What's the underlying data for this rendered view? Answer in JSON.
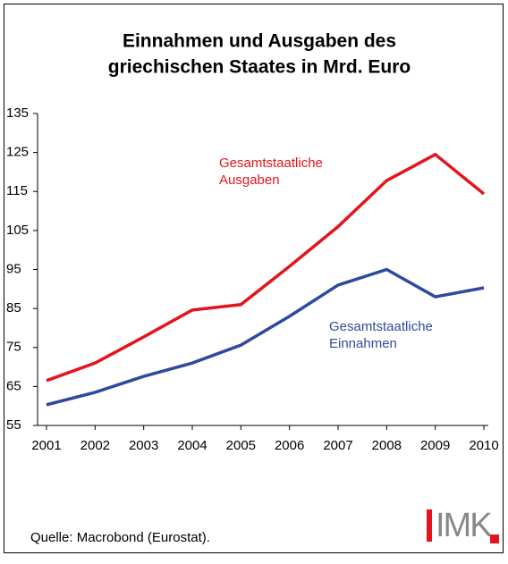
{
  "chart_data": {
    "type": "line",
    "title": [
      "Einnahmen und Ausgaben des",
      "griechischen Staates in Mrd. Euro"
    ],
    "categories": [
      "2001",
      "2002",
      "2003",
      "2004",
      "2005",
      "2006",
      "2007",
      "2008",
      "2009",
      "2010"
    ],
    "series": [
      {
        "name": [
          "Gesamtstaatliche",
          "Ausgaben"
        ],
        "color": "#e3141d",
        "values": [
          66.5,
          71,
          77.7,
          84.6,
          86,
          95.8,
          106,
          117.8,
          124.5,
          114.4
        ]
      },
      {
        "name": [
          "Gesamtstaatliche",
          "Einnahmen"
        ],
        "color": "#2e4a9e",
        "values": [
          60.3,
          63.5,
          67.6,
          71,
          75.6,
          83,
          91,
          95,
          88,
          90.3
        ]
      }
    ],
    "ylim": [
      55,
      135
    ],
    "yticks": [
      55,
      65,
      75,
      85,
      95,
      105,
      115,
      125,
      135
    ],
    "grid": false,
    "source": "Quelle: Macrobond (Eurostat).",
    "logo": "IMK"
  }
}
